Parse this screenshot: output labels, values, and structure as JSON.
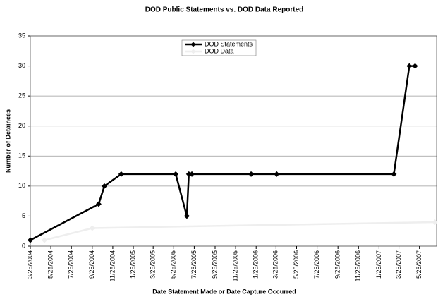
{
  "chart_data": {
    "type": "line",
    "title": "DOD Public Statements vs. DOD Data Reported",
    "xlabel": "Date Statement Made or Date Capture Occurred",
    "ylabel": "Number of Detainees",
    "xlim": [
      "3/25/2004",
      "7/15/2007"
    ],
    "xticks": [
      "3/25/2004",
      "5/25/2004",
      "7/25/2004",
      "9/25/2004",
      "11/25/2004",
      "1/25/2005",
      "3/25/2005",
      "5/25/2005",
      "7/25/2005",
      "9/25/2005",
      "11/25/2005",
      "1/25/2006",
      "3/25/2006",
      "5/25/2006",
      "7/25/2006",
      "9/25/2006",
      "11/25/2006",
      "1/25/2007",
      "3/25/2007",
      "5/25/2007"
    ],
    "ylim": [
      0,
      35
    ],
    "yticks": [
      0,
      5,
      10,
      15,
      20,
      25,
      30,
      35
    ],
    "grid": true,
    "legend": "top",
    "series": [
      {
        "name": "DOD Statements",
        "color": "#000000",
        "x": [
          "3/25/2004",
          "10/14/2004",
          "10/31/2004",
          "12/20/2004",
          "5/31/2005",
          "7/3/2005",
          "7/9/2005",
          "7/18/2005",
          "1/10/2006",
          "3/27/2006",
          "3/10/2007",
          "4/25/2007",
          "5/12/2007"
        ],
        "values": [
          1,
          7,
          10,
          12,
          12,
          5,
          12,
          12,
          12,
          12,
          12,
          30,
          30
        ]
      },
      {
        "name": "DOD Data",
        "color": "#eeeeee",
        "x": [
          "5/6/2004",
          "9/25/2004",
          "7/10/2007"
        ],
        "values": [
          1,
          3,
          4
        ]
      }
    ]
  }
}
